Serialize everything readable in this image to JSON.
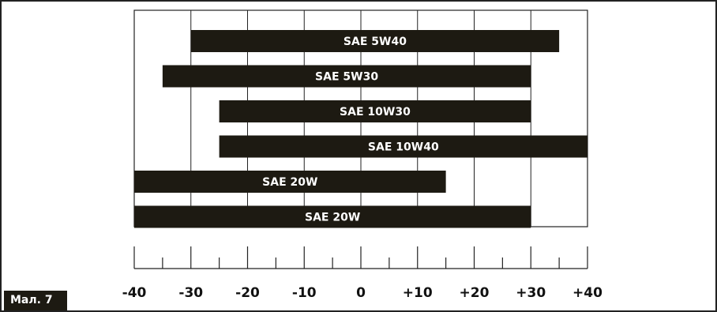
{
  "figure_label": "Мал. 7",
  "colors": {
    "bar_fill": "#1d1a12",
    "bar_text": "#ffffff",
    "grid_line": "#222222",
    "background": "#ffffff"
  },
  "chart_data": {
    "type": "bar",
    "orientation": "horizontal",
    "title": "",
    "xlabel": "",
    "ylabel": "",
    "xlim": [
      -40,
      40
    ],
    "grid": true,
    "categories": [
      "SAE 5W40",
      "SAE 5W30",
      "SAE 10W30",
      "SAE 10W40",
      "SAE 20W",
      "SAE 20W"
    ],
    "ranges": [
      [
        -30,
        35
      ],
      [
        -35,
        30
      ],
      [
        -25,
        30
      ],
      [
        -25,
        40
      ],
      [
        -40,
        15
      ],
      [
        -40,
        30
      ]
    ],
    "tick_values": [
      -40,
      -30,
      -20,
      -10,
      0,
      10,
      20,
      30,
      40
    ],
    "tick_labels": [
      "-40",
      "-30",
      "-20",
      "-10",
      "0",
      "+10",
      "+20",
      "+30",
      "+40"
    ]
  }
}
